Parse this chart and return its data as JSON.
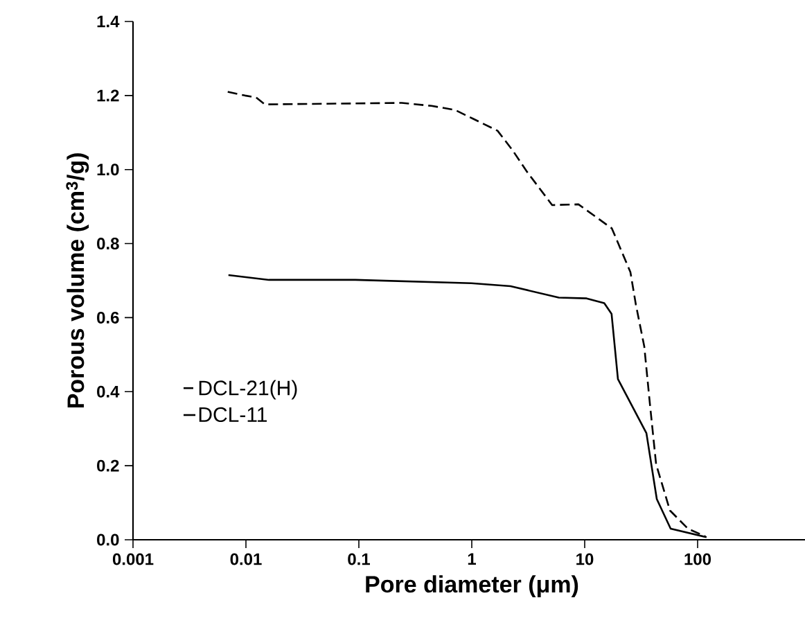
{
  "chart_data": {
    "type": "line",
    "xlabel": "Pore diameter (μm)",
    "ylabel": "Porous volume (cm$^{3}$/g)",
    "log": "x",
    "xlim": [
      0.001,
      1000
    ],
    "ylim": [
      0,
      1.4
    ],
    "xticks": [
      0.001,
      0.01,
      0.1,
      1,
      10,
      100
    ],
    "yticks": [
      {
        "value": 0,
        "label": "0.0"
      },
      {
        "value": 0.2,
        "label": "0.2"
      },
      {
        "value": 0.4,
        "label": "0.4"
      },
      {
        "value": 0.6,
        "label": "0.6"
      },
      {
        "value": 0.8,
        "label": "0.8"
      },
      {
        "value": 1.0,
        "label": "1.0"
      },
      {
        "value": 1.2,
        "label": "1.2"
      },
      {
        "value": 1.4,
        "label": "1.4"
      }
    ],
    "grid": false,
    "legend": "bottom left",
    "marker": "none",
    "series": [
      {
        "name": "DCL-21(H)",
        "color": "#000000",
        "line_style": "dashed",
        "x": [
          0.0069,
          0.0098,
          0.0123,
          0.0147,
          0.24,
          0.44,
          0.71,
          1.03,
          1.69,
          2.3,
          3.05,
          5.15,
          8.8,
          17.4,
          25.4,
          28.4,
          33.7,
          37.8,
          42.9,
          56.9,
          82,
          117
        ],
        "values": [
          1.21,
          1.2,
          1.195,
          1.176,
          1.18,
          1.172,
          1.161,
          1.137,
          1.105,
          1.052,
          0.996,
          0.904,
          0.906,
          0.841,
          0.723,
          0.635,
          0.522,
          0.367,
          0.204,
          0.079,
          0.03,
          0.009
        ]
      },
      {
        "name": "DCL-11",
        "color": "#000000",
        "line_style": "solid",
        "x": [
          0.007,
          0.016,
          0.093,
          0.99,
          2.2,
          5.9,
          10.4,
          14.9,
          17.3,
          19.7,
          35.2,
          43.5,
          57.7,
          120
        ],
        "values": [
          0.715,
          0.702,
          0.702,
          0.693,
          0.685,
          0.654,
          0.652,
          0.639,
          0.61,
          0.434,
          0.288,
          0.11,
          0.03,
          0.007
        ]
      }
    ]
  }
}
